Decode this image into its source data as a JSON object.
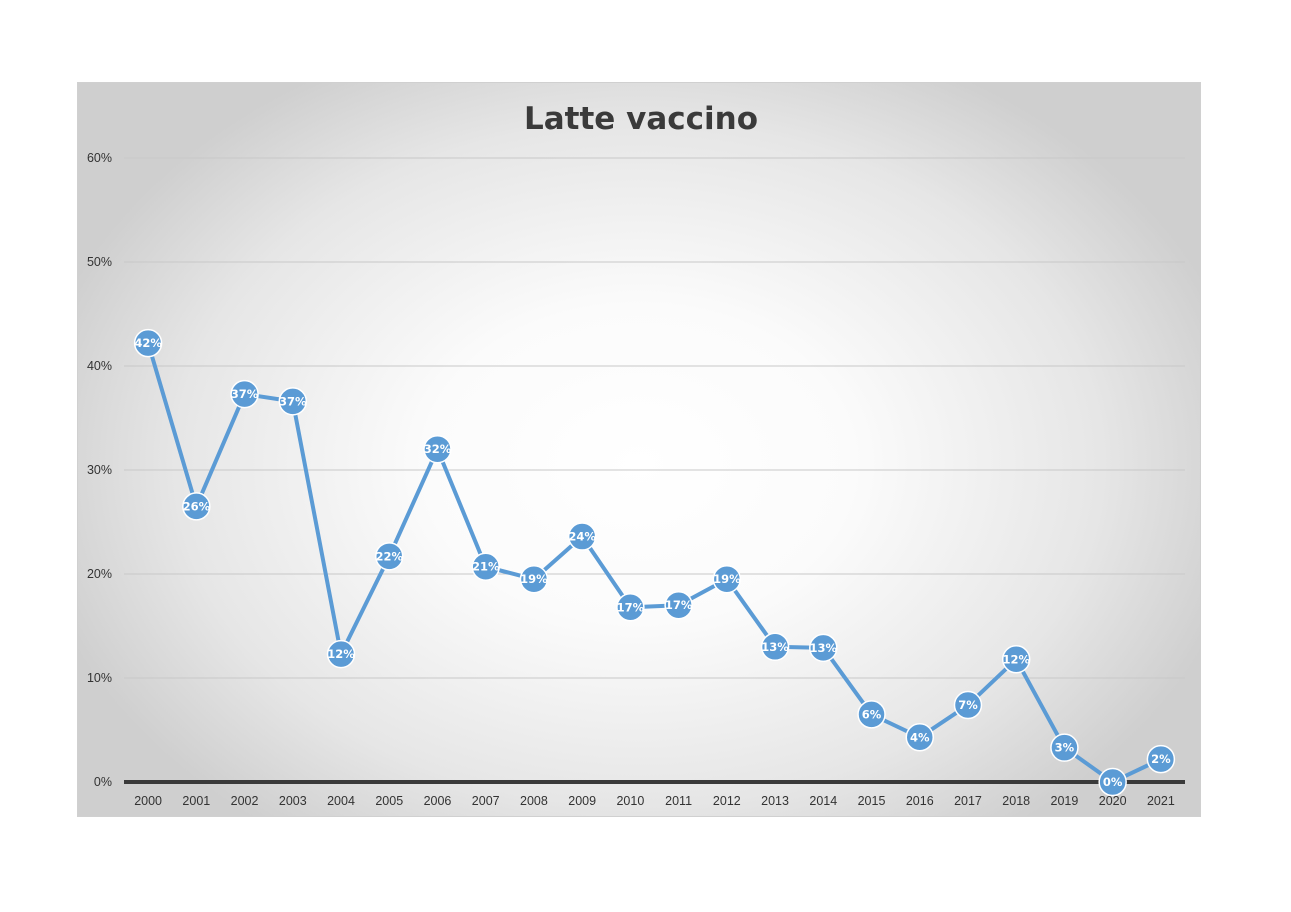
{
  "chart_data": {
    "type": "line",
    "title": "Latte vaccino",
    "xlabel": "",
    "ylabel": "",
    "ylim": [
      0,
      60
    ],
    "yticks": [
      0,
      10,
      20,
      30,
      40,
      50,
      60
    ],
    "ytick_labels": [
      "0%",
      "10%",
      "20%",
      "30%",
      "40%",
      "50%",
      "60%"
    ],
    "grid": true,
    "legend": "none",
    "categories": [
      "2000",
      "2001",
      "2002",
      "2003",
      "2004",
      "2005",
      "2006",
      "2007",
      "2008",
      "2009",
      "2010",
      "2011",
      "2012",
      "2013",
      "2014",
      "2015",
      "2016",
      "2017",
      "2018",
      "2019",
      "2020",
      "2021"
    ],
    "series": [
      {
        "values": [
          42.2,
          26.5,
          37.3,
          36.6,
          12.3,
          21.7,
          32.0,
          20.7,
          19.5,
          23.6,
          16.8,
          17.0,
          19.5,
          13.0,
          12.9,
          6.5,
          4.3,
          7.4,
          11.8,
          3.3,
          0.0,
          2.2
        ],
        "labels": [
          "42%",
          "26%",
          "37%",
          "37%",
          "12%",
          "22%",
          "32%",
          "21%",
          "19%",
          "24%",
          "17%",
          "17%",
          "19%",
          "13%",
          "13%",
          "6%",
          "4%",
          "7%",
          "12%",
          "3%",
          "0%",
          "2%"
        ],
        "color": "#5b9bd5"
      }
    ],
    "gridline_color": "#c8c8c8",
    "axis_color": "#3a3a3a"
  }
}
